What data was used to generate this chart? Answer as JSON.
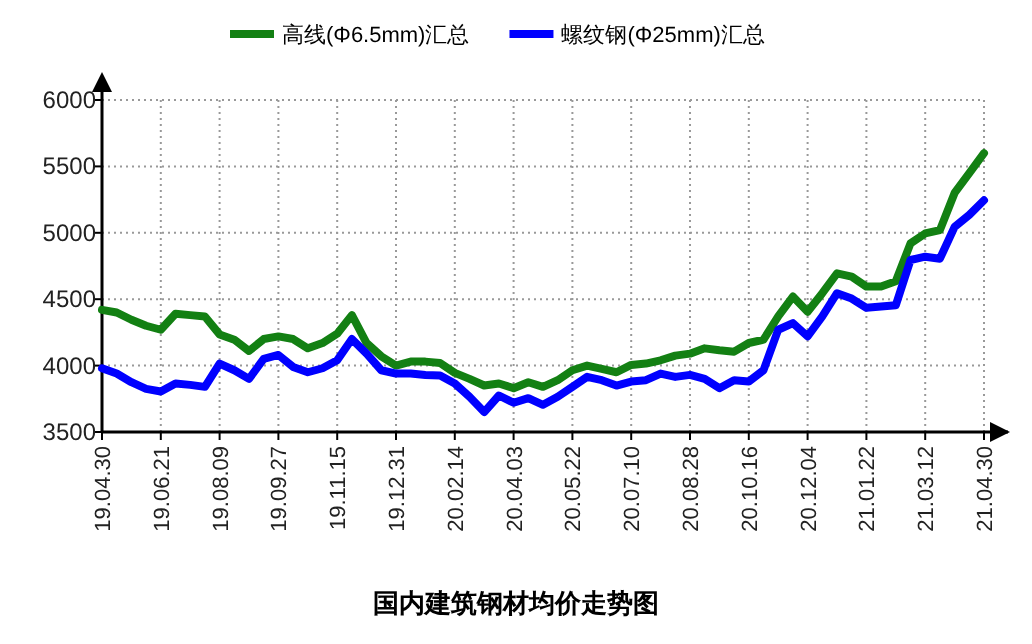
{
  "chart_data": {
    "type": "line",
    "title": "国内建筑钢材均价走势图",
    "categories": [
      "19.04.30",
      null,
      null,
      null,
      "19.06.21",
      null,
      null,
      null,
      "19.08.09",
      null,
      null,
      null,
      "19.09.27",
      null,
      null,
      null,
      "19.11.15",
      null,
      null,
      null,
      "19.12.31",
      null,
      null,
      null,
      "20.02.14",
      null,
      null,
      null,
      "20.04.03",
      null,
      null,
      null,
      "20.05.22",
      null,
      null,
      null,
      "20.07.10",
      null,
      null,
      null,
      "20.08.28",
      null,
      null,
      null,
      "20.10.16",
      null,
      null,
      null,
      "20.12.04",
      null,
      null,
      null,
      "21.01.22",
      null,
      null,
      null,
      "21.03.12",
      null,
      null,
      null,
      "21.04.30"
    ],
    "series": [
      {
        "name": "高线(Φ6.5mm)汇总",
        "color": "#138013",
        "values": [
          4420,
          4400,
          4345,
          4300,
          4270,
          4390,
          4380,
          4370,
          4235,
          4195,
          4110,
          4200,
          4220,
          4200,
          4130,
          4170,
          4240,
          4380,
          4170,
          4070,
          4000,
          4030,
          4030,
          4020,
          3945,
          3900,
          3850,
          3865,
          3830,
          3875,
          3840,
          3890,
          3965,
          4000,
          3975,
          3950,
          4005,
          4015,
          4040,
          4075,
          4090,
          4130,
          4115,
          4105,
          4170,
          4195,
          4370,
          4520,
          4405,
          4545,
          4695,
          4670,
          4595,
          4595,
          4635,
          4920,
          4995,
          5020,
          5300,
          5450,
          5600
        ]
      },
      {
        "name": "螺纹钢(Φ25mm)汇总",
        "color": "#0000ff",
        "values": [
          3980,
          3940,
          3875,
          3825,
          3805,
          3865,
          3855,
          3840,
          4015,
          3965,
          3900,
          4050,
          4080,
          3990,
          3950,
          3980,
          4040,
          4200,
          4090,
          3965,
          3940,
          3940,
          3930,
          3925,
          3865,
          3765,
          3650,
          3775,
          3720,
          3755,
          3705,
          3765,
          3840,
          3915,
          3890,
          3850,
          3880,
          3890,
          3940,
          3915,
          3930,
          3900,
          3830,
          3890,
          3880,
          3965,
          4270,
          4320,
          4220,
          4370,
          4545,
          4505,
          4435,
          4445,
          4455,
          4795,
          4820,
          4805,
          5045,
          5135,
          5245
        ]
      }
    ],
    "ylim": [
      3500,
      6000
    ],
    "yticks": [
      3500,
      4000,
      4500,
      5000,
      5500,
      6000
    ],
    "grid": true,
    "legend": "top",
    "marker": "none",
    "line_style": "solid"
  }
}
